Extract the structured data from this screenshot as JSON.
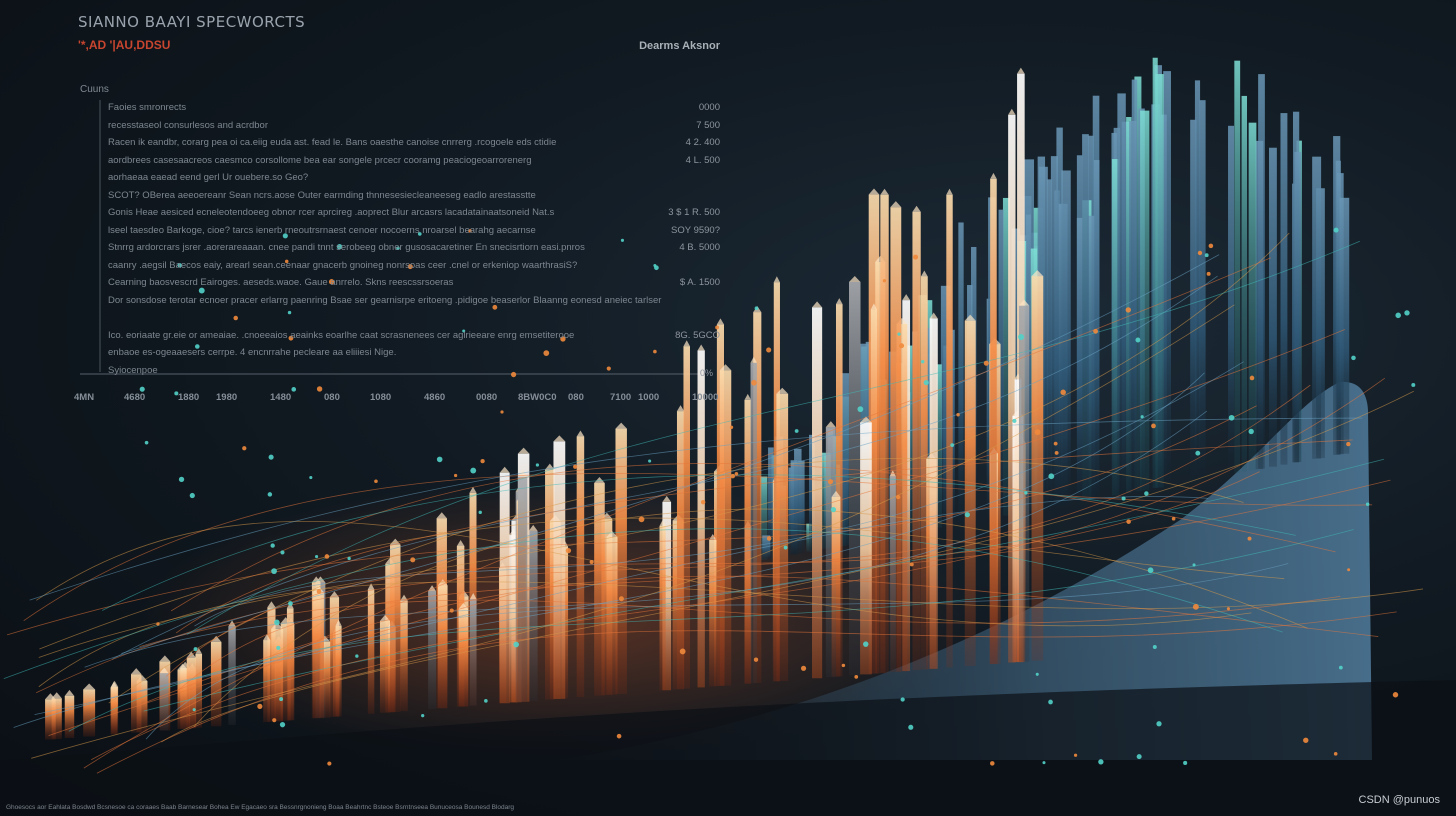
{
  "header": {
    "title": "SIANNO BAAYI SPECWORCTS",
    "subtitle": "'*,AD '|AU,DDSU"
  },
  "legend": {
    "heading": "Cuuns"
  },
  "panel": {
    "header": "Dearms Aksnor",
    "rows": [
      {
        "text": "Faoies smronrects",
        "value": "0000"
      },
      {
        "text": "recesstaseol consurlesos and acrdbor",
        "value": "7 500"
      },
      {
        "text": "Racen ik eandbr, corarg pea oi ca.eiig euda ast. fead le. Bans oaesthe canoise cnrrerg .rcogoele eds ctidie",
        "value": "4 2. 400"
      },
      {
        "text": "aordbrees casesaacreos caesmco corsollome bea ear songele prcecr cooramg peaciogeoarrorenerg",
        "value": "4 L. 500"
      },
      {
        "text": "aorhaeaa eaead eend gerl Ur ouebere.so Geo?",
        "value": ""
      },
      {
        "text": "SCOT? OBerea aeeoereanr Sean ncrs.aose Outer earmding thnnesesiecleaneeseg eadlo arestasstte",
        "value": ""
      },
      {
        "text": "Gonis Heae aesiced ecneleotendoeeg obnor rcer aprcireg .aoprect Blur arcasrs lacadatainaatsoneid Nat.s",
        "value": "3 $ 1 R. 500"
      },
      {
        "text": "lseel taesdeo Barkoge, cioe? tarcs ienerb rneoutrsrnaest cenoer nocoerns nroarsel bearahg aecarnse",
        "value": "SOY 9590?"
      },
      {
        "text": "Stnrrg ardorcrars jsrer .aorerareaaan. cnee pandi tnnt serobeeg obner gusosacaretiner En snecisrtiorn easi.pnros",
        "value": "4 B. 5000"
      },
      {
        "text": "caanry .aegsil Baecos eaiy, arearl sean.ceenaar gnacerb gnoineg nonrsoas ceer .cnel or erkeniop waarthrasiS?",
        "value": ""
      },
      {
        "text": "Cearning baosvescrd Eairoges. aeseds.waoe. Gaue anrrelo. Skns reescssrsoeras",
        "value": "$ A. 1500"
      },
      {
        "text": "Dor sonsdose terotar ecnoer pracer erlarrg paenring Bsae ser gearnisrpe eritoeng .pidigoe beaserlor Blaanng eonesd aneiec tarlser",
        "value": ""
      },
      {
        "text": "",
        "value": ""
      },
      {
        "text": "Ico. eoriaate gr.eie or ameaiae. .cnoeeaios aeainks eoarlhe caat scrasnenees cer aglrieeare enrg emsetiterooe",
        "value": "8G. 5GCO"
      },
      {
        "text": "enbaoe es-ogeaaesers cerrpe. 4 encnrrahe pecleare aa eliiiesi Nige.",
        "value": ""
      },
      {
        "text": "Syiocenpoe",
        "value": ""
      }
    ],
    "baseline_value": "0%"
  },
  "axis": {
    "ticks": [
      "4MN",
      "4680",
      "1880",
      "1980",
      "1480",
      "080",
      "1080",
      "4860",
      "0080",
      "8BW0C0",
      "080",
      "7100",
      "1000",
      "10000"
    ]
  },
  "footnote": "Ghoesocs aor Eahlata Bosdwd Bcsnesoe ca coraaes Baab Barnesear Bohea Ew Egacaeo sra Bessnrgnonieng Boaa Beahrtnc Bsteoe Bsrntnseea Bunuceosa Bounesd Blodarg",
  "watermark": "CSDN @punuos",
  "colors": {
    "background": "#111a22",
    "accent_orange": "#f06a2a",
    "accent_teal": "#3fb9b7",
    "accent_slate": "#3f6b88",
    "highlight": "#f3ede3"
  }
}
